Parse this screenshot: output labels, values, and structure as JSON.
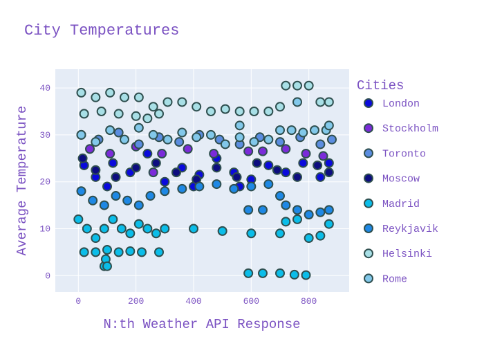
{
  "chart_data": {
    "type": "scatter",
    "title": "City Temperatures",
    "xlabel": "N:th Weather API Response",
    "ylabel": "Average Temperature",
    "xlim": [
      -80,
      940
    ],
    "ylim": [
      -3.5,
      44
    ],
    "xticks": [
      0,
      200,
      400,
      600,
      800
    ],
    "yticks": [
      0,
      10,
      20,
      30,
      40
    ],
    "grid": true,
    "legend": {
      "title": "Cities",
      "placement": "right"
    },
    "marker_outline": "#2f4f4f",
    "series": [
      {
        "name": "London",
        "color": "#0a0adc",
        "points": [
          [
            20,
            23.5
          ],
          [
            60,
            21
          ],
          [
            120,
            24
          ],
          [
            180,
            22
          ],
          [
            240,
            26
          ],
          [
            300,
            20
          ],
          [
            360,
            23
          ],
          [
            420,
            21.5
          ],
          [
            480,
            25
          ],
          [
            540,
            22
          ],
          [
            600,
            20.5
          ],
          [
            660,
            23.5
          ],
          [
            720,
            22
          ],
          [
            780,
            24
          ],
          [
            840,
            21
          ],
          [
            870,
            24
          ],
          [
            100,
            19
          ],
          [
            400,
            19
          ],
          [
            560,
            19
          ]
        ]
      },
      {
        "name": "Stockholm",
        "color": "#7b2bd9",
        "points": [
          [
            40,
            27
          ],
          [
            110,
            26
          ],
          [
            200,
            27.5
          ],
          [
            290,
            26
          ],
          [
            380,
            27
          ],
          [
            470,
            26
          ],
          [
            590,
            26.5
          ],
          [
            640,
            26.5
          ],
          [
            720,
            27
          ],
          [
            790,
            26
          ],
          [
            850,
            25.5
          ],
          [
            260,
            22
          ]
        ]
      },
      {
        "name": "Toronto",
        "color": "#5b8de0",
        "points": [
          [
            10,
            30
          ],
          [
            70,
            29
          ],
          [
            140,
            30.5
          ],
          [
            210,
            28
          ],
          [
            280,
            29.5
          ],
          [
            350,
            28.5
          ],
          [
            420,
            30
          ],
          [
            490,
            29
          ],
          [
            560,
            28
          ],
          [
            630,
            29.5
          ],
          [
            700,
            28.5
          ],
          [
            770,
            29.5
          ],
          [
            840,
            28
          ],
          [
            880,
            29
          ]
        ]
      },
      {
        "name": "Moscow",
        "color": "#0d0d80",
        "points": [
          [
            15,
            25
          ],
          [
            60,
            22.5
          ],
          [
            130,
            21
          ],
          [
            200,
            23
          ],
          [
            270,
            24
          ],
          [
            340,
            22
          ],
          [
            410,
            20.5
          ],
          [
            480,
            23
          ],
          [
            550,
            21
          ],
          [
            620,
            24
          ],
          [
            690,
            22.5
          ],
          [
            760,
            21
          ],
          [
            830,
            23.5
          ],
          [
            870,
            22
          ]
        ]
      },
      {
        "name": "Madrid",
        "color": "#0bbde9",
        "points": [
          [
            0,
            12
          ],
          [
            30,
            10
          ],
          [
            60,
            8
          ],
          [
            90,
            10
          ],
          [
            120,
            12
          ],
          [
            150,
            10
          ],
          [
            180,
            9
          ],
          [
            210,
            11
          ],
          [
            240,
            10
          ],
          [
            270,
            9
          ],
          [
            300,
            10
          ],
          [
            400,
            10
          ],
          [
            500,
            9.5
          ],
          [
            600,
            9
          ],
          [
            700,
            9
          ],
          [
            720,
            11.5
          ],
          [
            760,
            12
          ],
          [
            800,
            8
          ],
          [
            840,
            8.5
          ],
          [
            870,
            11
          ],
          [
            20,
            5
          ],
          [
            60,
            5
          ],
          [
            100,
            5.5
          ],
          [
            140,
            5
          ],
          [
            180,
            5.2
          ],
          [
            220,
            5
          ],
          [
            280,
            5
          ],
          [
            90,
            2
          ],
          [
            95,
            3.5
          ],
          [
            100,
            2
          ],
          [
            590,
            0.5
          ],
          [
            640,
            0.5
          ],
          [
            700,
            0.5
          ],
          [
            750,
            0.2
          ],
          [
            790,
            0.1
          ]
        ]
      },
      {
        "name": "Reykjavik",
        "color": "#1e88e5",
        "points": [
          [
            10,
            18
          ],
          [
            50,
            16
          ],
          [
            90,
            15
          ],
          [
            130,
            17
          ],
          [
            170,
            16
          ],
          [
            210,
            15
          ],
          [
            250,
            17
          ],
          [
            300,
            18
          ],
          [
            360,
            18.5
          ],
          [
            420,
            19
          ],
          [
            480,
            19.5
          ],
          [
            540,
            18.5
          ],
          [
            600,
            19
          ],
          [
            660,
            19.5
          ],
          [
            700,
            17
          ],
          [
            720,
            15
          ],
          [
            760,
            14
          ],
          [
            800,
            13
          ],
          [
            840,
            13.5
          ],
          [
            870,
            14
          ],
          [
            590,
            14
          ],
          [
            640,
            14
          ]
        ]
      },
      {
        "name": "Helsinki",
        "color": "#a8dfe6",
        "points": [
          [
            10,
            39
          ],
          [
            60,
            38
          ],
          [
            110,
            39
          ],
          [
            160,
            38
          ],
          [
            210,
            38
          ],
          [
            260,
            36
          ],
          [
            310,
            37
          ],
          [
            360,
            37
          ],
          [
            410,
            36
          ],
          [
            460,
            35
          ],
          [
            510,
            35.5
          ],
          [
            560,
            35
          ],
          [
            610,
            35
          ],
          [
            660,
            35
          ],
          [
            700,
            36
          ],
          [
            720,
            40.5
          ],
          [
            760,
            40.5
          ],
          [
            800,
            40.5
          ],
          [
            840,
            37
          ],
          [
            870,
            37
          ],
          [
            20,
            34.5
          ],
          [
            80,
            35
          ],
          [
            140,
            34.5
          ],
          [
            200,
            34
          ],
          [
            240,
            33.5
          ],
          [
            280,
            34.5
          ]
        ]
      },
      {
        "name": "Rome",
        "color": "#82c8ea",
        "points": [
          [
            10,
            30
          ],
          [
            60,
            28.5
          ],
          [
            110,
            31
          ],
          [
            160,
            29
          ],
          [
            210,
            31.5
          ],
          [
            260,
            30
          ],
          [
            310,
            29
          ],
          [
            360,
            30.5
          ],
          [
            410,
            29.5
          ],
          [
            460,
            30
          ],
          [
            510,
            28
          ],
          [
            560,
            29.5
          ],
          [
            610,
            28.5
          ],
          [
            660,
            29
          ],
          [
            700,
            31
          ],
          [
            740,
            31
          ],
          [
            780,
            30.5
          ],
          [
            820,
            31
          ],
          [
            860,
            31
          ],
          [
            870,
            32
          ],
          [
            560,
            32
          ],
          [
            760,
            37
          ]
        ]
      }
    ]
  }
}
